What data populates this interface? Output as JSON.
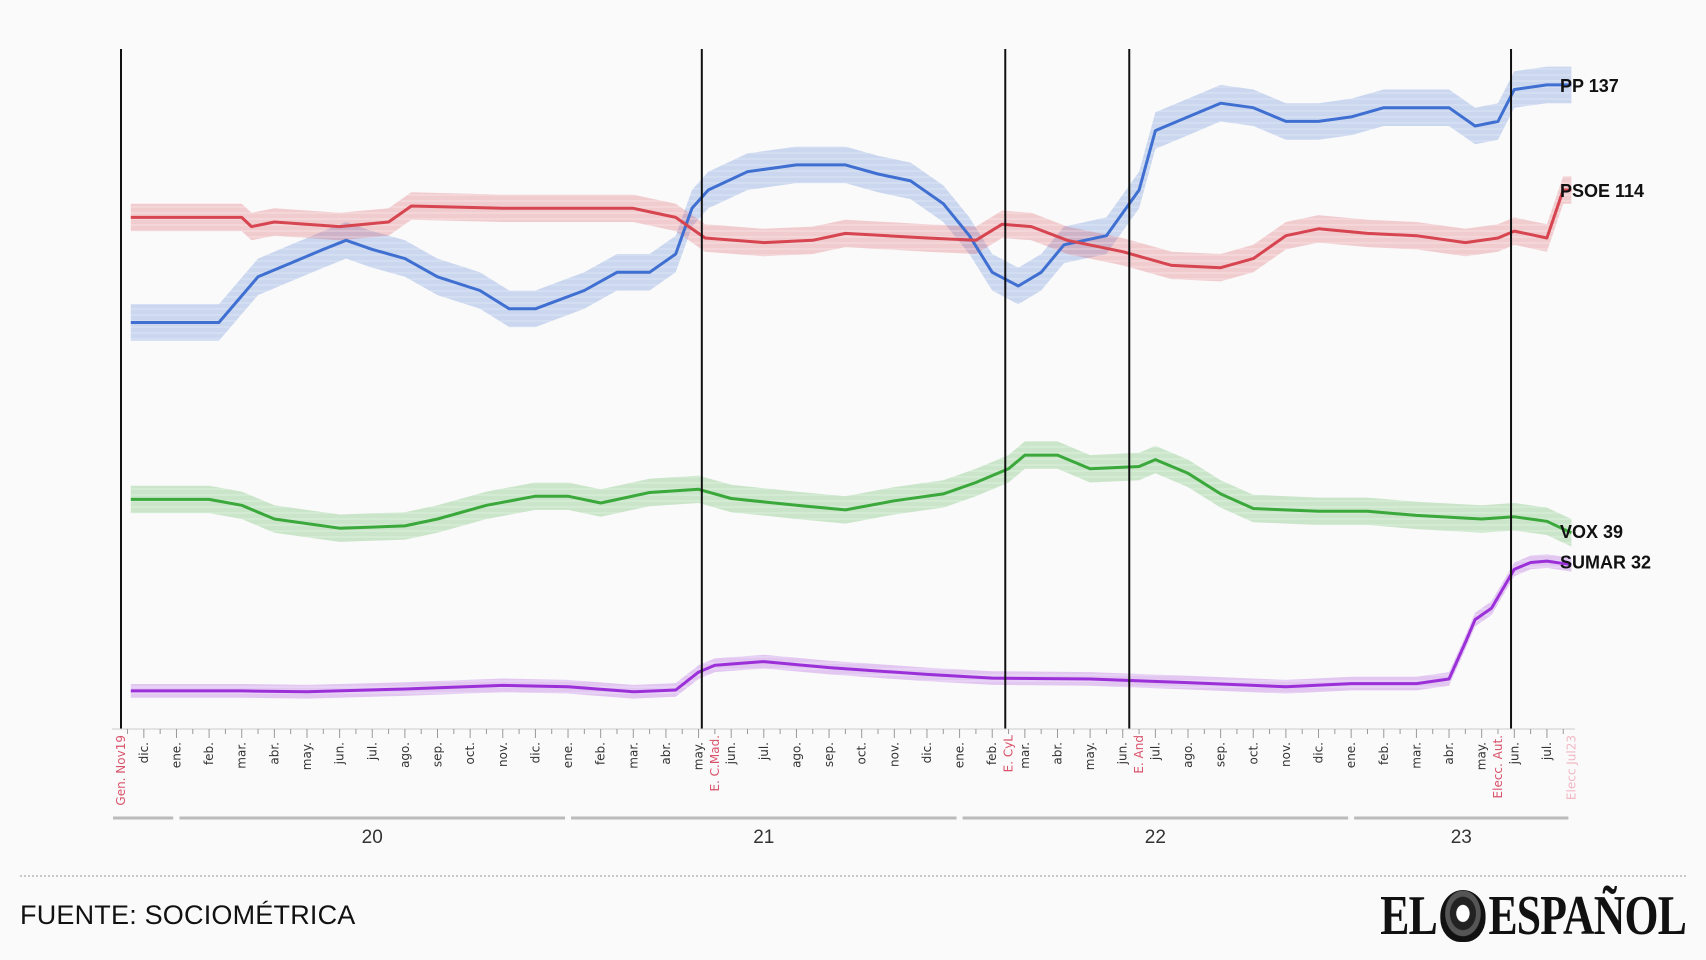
{
  "chart_data": {
    "type": "line",
    "title": "",
    "xlabel": "",
    "ylabel": "",
    "x_units": "months since 1 Nov 2019",
    "y_units": "seats",
    "ylim": [
      0,
      140
    ],
    "grid": false,
    "month_ticks": [
      "dic.",
      "ene.",
      "feb.",
      "mar.",
      "abr.",
      "may.",
      "jun.",
      "jul.",
      "ago.",
      "sep.",
      "oct.",
      "nov.",
      "dic.",
      "ene.",
      "feb.",
      "mar.",
      "abr.",
      "may.",
      "jun.",
      "jul.",
      "ago.",
      "sep.",
      "oct.",
      "nov.",
      "dic.",
      "ene.",
      "feb.",
      "mar.",
      "abr.",
      "may.",
      "jun.",
      "jul.",
      "ago.",
      "sep.",
      "oct.",
      "nov.",
      "dic.",
      "ene.",
      "feb.",
      "mar.",
      "abr.",
      "may.",
      "jun.",
      "jul."
    ],
    "years": [
      {
        "label": "20",
        "start": 2,
        "end": 14
      },
      {
        "label": "21",
        "start": 14,
        "end": 26
      },
      {
        "label": "22",
        "start": 26,
        "end": 38
      },
      {
        "label": "23",
        "start": 38,
        "end": 44.75
      }
    ],
    "events": [
      {
        "label": "Gen. Nov19",
        "x": 0.3,
        "line": true,
        "color": "#d9536b"
      },
      {
        "label": "E. C.Mad.",
        "x": 18.1,
        "line": true,
        "color": "#d9536b"
      },
      {
        "label": "E. CyL",
        "x": 27.4,
        "line": true,
        "color": "#d9536b"
      },
      {
        "label": "E. And",
        "x": 31.2,
        "line": true,
        "color": "#d9536b"
      },
      {
        "label": "Elecc. Aut.",
        "x": 42.9,
        "line": true,
        "color": "#d9536b"
      },
      {
        "label": "Elecc Jul23",
        "x": 44.75,
        "line": false,
        "color": "#f2b8c4"
      }
    ],
    "series": [
      {
        "name": "PP",
        "final": 137,
        "color": "#3f6fd1",
        "band": 4,
        "points": [
          [
            0.6,
            85
          ],
          [
            3.3,
            85
          ],
          [
            4.5,
            95
          ],
          [
            5.5,
            98
          ],
          [
            6.5,
            101
          ],
          [
            7.2,
            103
          ],
          [
            8,
            101
          ],
          [
            9,
            99
          ],
          [
            10,
            95
          ],
          [
            11.3,
            92
          ],
          [
            12.2,
            88
          ],
          [
            13,
            88
          ],
          [
            14.5,
            92
          ],
          [
            15.5,
            96
          ],
          [
            16.5,
            96
          ],
          [
            17.3,
            100
          ],
          [
            17.8,
            110
          ],
          [
            18.3,
            114
          ],
          [
            19.5,
            118
          ],
          [
            21,
            119.5
          ],
          [
            22.5,
            119.5
          ],
          [
            23.5,
            117.5
          ],
          [
            24.5,
            116
          ],
          [
            25.5,
            111
          ],
          [
            26.3,
            104
          ],
          [
            27,
            96
          ],
          [
            27.8,
            93
          ],
          [
            28.5,
            96
          ],
          [
            29.2,
            102
          ],
          [
            30.5,
            104
          ],
          [
            31.5,
            114
          ],
          [
            32,
            127
          ],
          [
            33,
            130
          ],
          [
            34,
            133
          ],
          [
            35,
            132
          ],
          [
            36,
            129
          ],
          [
            37,
            129
          ],
          [
            38,
            130
          ],
          [
            39,
            132
          ],
          [
            40,
            132
          ],
          [
            41,
            132
          ],
          [
            41.8,
            128
          ],
          [
            42.5,
            129
          ],
          [
            43,
            136
          ],
          [
            44,
            137
          ],
          [
            44.75,
            137
          ]
        ]
      },
      {
        "name": "PSOE",
        "final": 114,
        "color": "#d64550",
        "band": 3,
        "points": [
          [
            0.6,
            108
          ],
          [
            4,
            108
          ],
          [
            4.3,
            106
          ],
          [
            5,
            107
          ],
          [
            7,
            106
          ],
          [
            8.5,
            107
          ],
          [
            9.2,
            110.5
          ],
          [
            12,
            110
          ],
          [
            16,
            110
          ],
          [
            17.3,
            108
          ],
          [
            18.2,
            103.5
          ],
          [
            20,
            102.5
          ],
          [
            21.5,
            103
          ],
          [
            22.5,
            104.5
          ],
          [
            25,
            103.5
          ],
          [
            26.5,
            103
          ],
          [
            27.3,
            106.5
          ],
          [
            28.2,
            106
          ],
          [
            29.3,
            103
          ],
          [
            31,
            100.5
          ],
          [
            32.5,
            97.5
          ],
          [
            34,
            97
          ],
          [
            35,
            99
          ],
          [
            36,
            104
          ],
          [
            37,
            105.5
          ],
          [
            38.5,
            104.5
          ],
          [
            40,
            104
          ],
          [
            41.5,
            102.5
          ],
          [
            42.5,
            103.5
          ],
          [
            43,
            105
          ],
          [
            44,
            103.5
          ],
          [
            44.5,
            114
          ],
          [
            44.75,
            114
          ]
        ]
      },
      {
        "name": "VOX",
        "final": 39,
        "color": "#3aa83a",
        "band": 3,
        "points": [
          [
            0.6,
            46.3
          ],
          [
            3,
            46.3
          ],
          [
            4,
            45
          ],
          [
            5,
            42
          ],
          [
            7,
            40
          ],
          [
            9,
            40.5
          ],
          [
            10,
            42
          ],
          [
            11.5,
            45
          ],
          [
            13,
            47
          ],
          [
            14,
            47
          ],
          [
            15,
            45.5
          ],
          [
            16.5,
            47.8
          ],
          [
            18,
            48.5
          ],
          [
            19,
            46.5
          ],
          [
            21,
            45
          ],
          [
            22.5,
            44
          ],
          [
            24,
            46
          ],
          [
            25.5,
            47.5
          ],
          [
            26.5,
            50
          ],
          [
            27.5,
            53
          ],
          [
            28,
            56
          ],
          [
            29,
            56
          ],
          [
            30,
            53
          ],
          [
            31.5,
            53.5
          ],
          [
            32,
            55
          ],
          [
            33,
            52
          ],
          [
            34,
            47.5
          ],
          [
            35,
            44.3
          ],
          [
            37,
            43.7
          ],
          [
            38.5,
            43.7
          ],
          [
            40,
            42.8
          ],
          [
            42,
            42
          ],
          [
            43,
            42.5
          ],
          [
            44,
            41.5
          ],
          [
            44.75,
            39
          ]
        ]
      },
      {
        "name": "SUMAR",
        "final": 32,
        "color": "#9b30d9",
        "band": 1.5,
        "points": [
          [
            0.6,
            4.4
          ],
          [
            4,
            4.4
          ],
          [
            6,
            4.2
          ],
          [
            9,
            4.8
          ],
          [
            12,
            5.6
          ],
          [
            14,
            5.3
          ],
          [
            16,
            4.2
          ],
          [
            17.3,
            4.6
          ],
          [
            18,
            8.5
          ],
          [
            18.5,
            10
          ],
          [
            20,
            10.8
          ],
          [
            22,
            9.5
          ],
          [
            25,
            8
          ],
          [
            27,
            7.2
          ],
          [
            30,
            7
          ],
          [
            33,
            6.2
          ],
          [
            36,
            5.3
          ],
          [
            38,
            6
          ],
          [
            40,
            6
          ],
          [
            41,
            7
          ],
          [
            41.5,
            15
          ],
          [
            41.8,
            20
          ],
          [
            42.3,
            22.5
          ],
          [
            43,
            31
          ],
          [
            43.5,
            32.5
          ],
          [
            44,
            32.8
          ],
          [
            44.75,
            32
          ]
        ]
      }
    ]
  },
  "footer": {
    "source": "FUENTE: SOCIOMÉTRICA",
    "logo_text": "EL ESPAÑOL",
    "logo_left": "EL",
    "logo_right": "ESPAÑOL"
  }
}
